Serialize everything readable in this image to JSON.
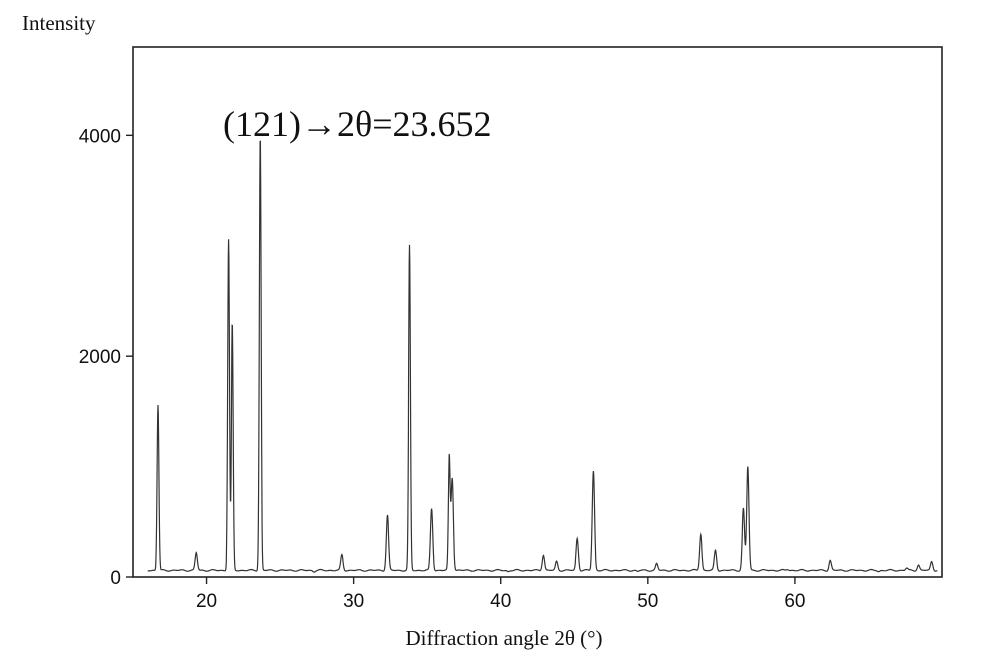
{
  "chart_data": {
    "type": "line",
    "ylabel": "Intensity",
    "xlabel": "Diffraction angle 2θ (°)",
    "annotation": "(121)→2θ=23.652",
    "xlim": [
      15,
      70
    ],
    "ylim": [
      0,
      4800
    ],
    "x_ticks": [
      20,
      30,
      40,
      50,
      60
    ],
    "y_ticks": [
      0,
      2000,
      4000
    ],
    "grid": false,
    "line_color": "#333333",
    "peaks": [
      {
        "x": 16.7,
        "y": 1560
      },
      {
        "x": 19.3,
        "y": 220
      },
      {
        "x": 21.5,
        "y": 3060
      },
      {
        "x": 21.75,
        "y": 2300
      },
      {
        "x": 23.65,
        "y": 4000
      },
      {
        "x": 27.3,
        "y": 50
      },
      {
        "x": 29.2,
        "y": 200
      },
      {
        "x": 32.3,
        "y": 560
      },
      {
        "x": 33.8,
        "y": 3000
      },
      {
        "x": 35.3,
        "y": 620
      },
      {
        "x": 36.5,
        "y": 1080
      },
      {
        "x": 36.7,
        "y": 900
      },
      {
        "x": 39.7,
        "y": 60
      },
      {
        "x": 40.5,
        "y": 50
      },
      {
        "x": 41.6,
        "y": 60
      },
      {
        "x": 42.9,
        "y": 200
      },
      {
        "x": 43.8,
        "y": 140
      },
      {
        "x": 45.2,
        "y": 350
      },
      {
        "x": 46.3,
        "y": 960
      },
      {
        "x": 49.3,
        "y": 50
      },
      {
        "x": 50.6,
        "y": 120
      },
      {
        "x": 51.5,
        "y": 60
      },
      {
        "x": 53.6,
        "y": 390
      },
      {
        "x": 54.6,
        "y": 240
      },
      {
        "x": 56.5,
        "y": 620
      },
      {
        "x": 56.8,
        "y": 1000
      },
      {
        "x": 59.5,
        "y": 70
      },
      {
        "x": 62.4,
        "y": 150
      },
      {
        "x": 64.1,
        "y": 60
      },
      {
        "x": 65.7,
        "y": 50
      },
      {
        "x": 67.6,
        "y": 80
      },
      {
        "x": 68.4,
        "y": 110
      },
      {
        "x": 69.3,
        "y": 140
      }
    ],
    "baseline": 60
  }
}
